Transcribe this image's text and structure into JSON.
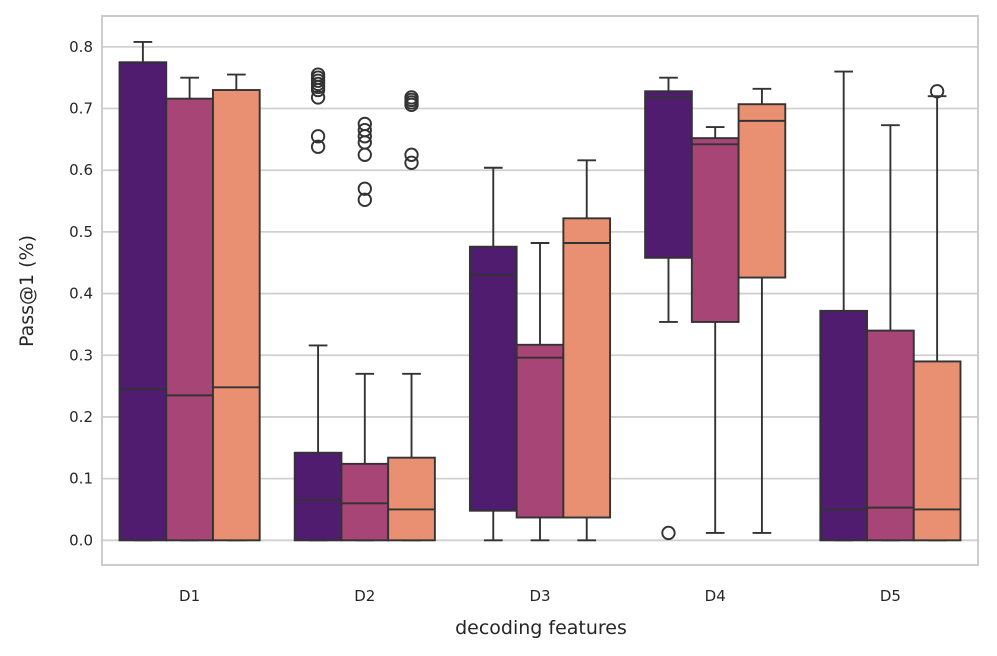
{
  "chart_data": {
    "type": "boxplot",
    "xlabel": "decoding features",
    "ylabel": "Pass@1 (%)",
    "ylim": [
      -0.04,
      0.85
    ],
    "yticks": [
      0.0,
      0.1,
      0.2,
      0.3,
      0.4,
      0.5,
      0.6,
      0.7,
      0.8
    ],
    "ytick_labels": [
      "0.0",
      "0.1",
      "0.2",
      "0.3",
      "0.4",
      "0.5",
      "0.6",
      "0.7",
      "0.8"
    ],
    "grid": true,
    "categories": [
      "D1",
      "D2",
      "D3",
      "D4",
      "D5"
    ],
    "series": [
      {
        "color": "#4f1c70",
        "boxes": [
          {
            "whisker_low": 0.0,
            "q1": 0.0,
            "median": 0.245,
            "q3": 0.775,
            "whisker_high": 0.808,
            "outliers": []
          },
          {
            "whisker_low": 0.0,
            "q1": 0.0,
            "median": 0.065,
            "q3": 0.142,
            "whisker_high": 0.316,
            "outliers": [
              0.755,
              0.75,
              0.745,
              0.74,
              0.735,
              0.73,
              0.718,
              0.655,
              0.638
            ]
          },
          {
            "whisker_low": 0.0,
            "q1": 0.048,
            "median": 0.43,
            "q3": 0.476,
            "whisker_high": 0.604,
            "outliers": []
          },
          {
            "whisker_low": 0.354,
            "q1": 0.458,
            "median": 0.718,
            "q3": 0.728,
            "whisker_high": 0.75,
            "outliers": [
              0.012
            ]
          },
          {
            "whisker_low": 0.0,
            "q1": 0.0,
            "median": 0.05,
            "q3": 0.372,
            "whisker_high": 0.76,
            "outliers": []
          }
        ]
      },
      {
        "color": "#a74577",
        "boxes": [
          {
            "whisker_low": 0.0,
            "q1": 0.0,
            "median": 0.235,
            "q3": 0.716,
            "whisker_high": 0.75,
            "outliers": []
          },
          {
            "whisker_low": 0.0,
            "q1": 0.0,
            "median": 0.06,
            "q3": 0.124,
            "whisker_high": 0.27,
            "outliers": [
              0.675,
              0.665,
              0.655,
              0.645,
              0.625,
              0.57,
              0.552
            ]
          },
          {
            "whisker_low": 0.0,
            "q1": 0.037,
            "median": 0.296,
            "q3": 0.317,
            "whisker_high": 0.482,
            "outliers": []
          },
          {
            "whisker_low": 0.012,
            "q1": 0.354,
            "median": 0.642,
            "q3": 0.652,
            "whisker_high": 0.67,
            "outliers": []
          },
          {
            "whisker_low": 0.0,
            "q1": 0.0,
            "median": 0.053,
            "q3": 0.34,
            "whisker_high": 0.673,
            "outliers": []
          }
        ]
      },
      {
        "color": "#e99072",
        "boxes": [
          {
            "whisker_low": 0.0,
            "q1": 0.0,
            "median": 0.248,
            "q3": 0.73,
            "whisker_high": 0.755,
            "outliers": []
          },
          {
            "whisker_low": 0.0,
            "q1": 0.0,
            "median": 0.05,
            "q3": 0.134,
            "whisker_high": 0.27,
            "outliers": [
              0.718,
              0.714,
              0.71,
              0.706,
              0.625,
              0.612
            ]
          },
          {
            "whisker_low": 0.0,
            "q1": 0.037,
            "median": 0.482,
            "q3": 0.522,
            "whisker_high": 0.616,
            "outliers": []
          },
          {
            "whisker_low": 0.012,
            "q1": 0.426,
            "median": 0.68,
            "q3": 0.707,
            "whisker_high": 0.732,
            "outliers": []
          },
          {
            "whisker_low": 0.0,
            "q1": 0.0,
            "median": 0.05,
            "q3": 0.29,
            "whisker_high": 0.72,
            "outliers": [
              0.728
            ]
          }
        ]
      }
    ]
  }
}
